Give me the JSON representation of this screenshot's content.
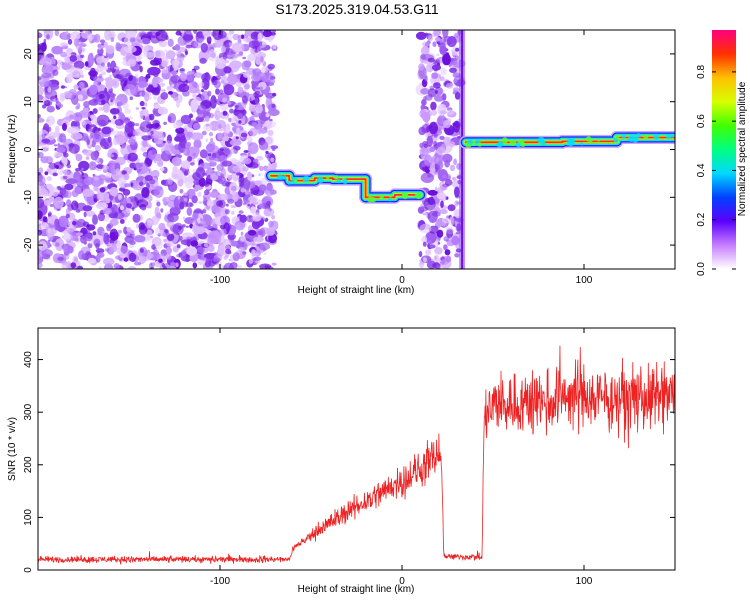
{
  "title": "S173.2025.319.04.53.G11",
  "chart_data": [
    {
      "type": "heatmap",
      "xlabel": "Height of straight line (km)",
      "ylabel": "Frequency (Hz)",
      "xlim": [
        -200,
        150
      ],
      "ylim": [
        -25,
        25
      ],
      "xticks": [
        -100,
        0,
        100
      ],
      "yticks": [
        -20,
        -10,
        0,
        10,
        20
      ],
      "colorbar": {
        "label": "Normalized spectral amplitude",
        "range": [
          0.0,
          0.97
        ],
        "ticks": [
          0.0,
          0.2,
          0.4,
          0.6,
          0.8
        ]
      },
      "noise_regions_km": [
        [
          -200,
          -70
        ],
        [
          10,
          32
        ]
      ],
      "vertical_streak_km": 33,
      "signal_trace": {
        "segments": [
          {
            "x": [
              -72,
              -62
            ],
            "freq_hz": -5.5
          },
          {
            "x": [
              -62,
              -48
            ],
            "freq_hz": -6.5
          },
          {
            "x": [
              -48,
              -38
            ],
            "freq_hz": -6.0
          },
          {
            "x": [
              -38,
              -20
            ],
            "freq_hz": -6.2
          },
          {
            "x": [
              -20,
              -4
            ],
            "freq_hz": -10.0
          },
          {
            "x": [
              -4,
              10
            ],
            "freq_hz": -9.5
          },
          {
            "x": [
              35,
              88
            ],
            "freq_hz": 1.5
          },
          {
            "x": [
              88,
              118
            ],
            "freq_hz": 1.7
          },
          {
            "x": [
              118,
              150
            ],
            "freq_hz": 2.5
          }
        ]
      }
    },
    {
      "type": "line",
      "xlabel": "Height of straight line (km)",
      "ylabel": "SNR (10 * v/v)",
      "xlim": [
        -200,
        150
      ],
      "ylim": [
        0,
        460
      ],
      "xticks": [
        -100,
        0,
        100
      ],
      "yticks": [
        0,
        100,
        200,
        300,
        400
      ],
      "color": "#ee2222",
      "trend": {
        "x": [
          -200,
          -62,
          -60,
          -40,
          -20,
          0,
          10,
          20,
          22,
          23,
          44,
          45,
          50,
          70,
          100,
          120,
          150
        ],
        "y": [
          20,
          20,
          40,
          90,
          130,
          170,
          190,
          220,
          180,
          25,
          25,
          290,
          310,
          320,
          330,
          320,
          330
        ]
      }
    }
  ]
}
